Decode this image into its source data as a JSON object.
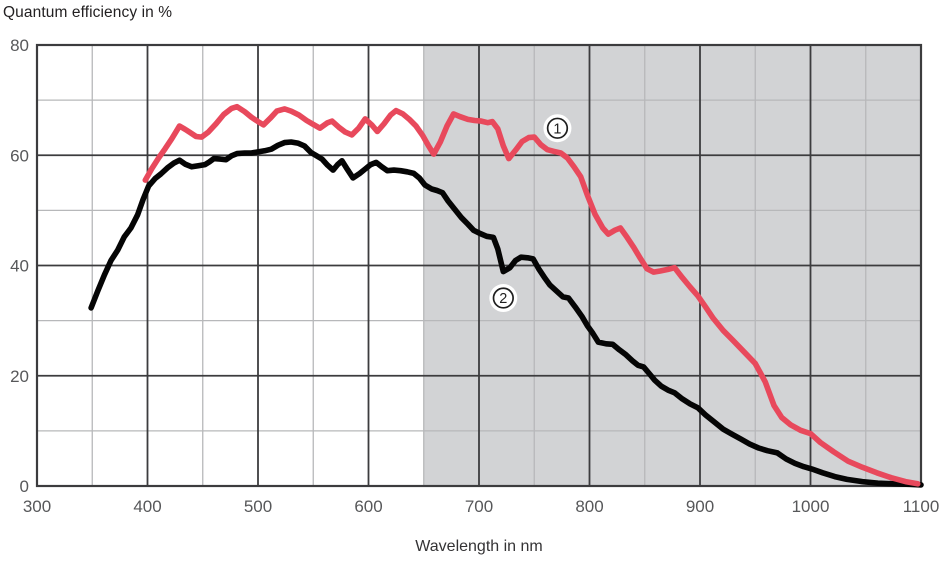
{
  "chart_data": {
    "type": "line",
    "title": "Quantum efficiency in %",
    "xlabel": "Wavelength in nm",
    "ylabel": "Quantum efficiency in %",
    "xlim": [
      300,
      1100
    ],
    "ylim": [
      0,
      80
    ],
    "x_major_ticks": [
      300,
      400,
      500,
      600,
      700,
      800,
      900,
      1000,
      1100
    ],
    "x_minor_ticks": [
      350,
      450,
      550,
      650,
      750,
      850,
      950,
      1050
    ],
    "y_major_ticks": [
      0,
      20,
      40,
      60,
      80
    ],
    "y_minor_ticks": [
      10,
      30,
      50,
      70
    ],
    "grid": true,
    "legend": "none",
    "shaded_region": {
      "x_start": 650,
      "x_end": 1100,
      "color": "#d2d3d5"
    },
    "colors": {
      "series1": "#e8495c",
      "series2": "#050505",
      "grid_major": "#3c3c3e",
      "grid_minor": "#b7b8ba",
      "frame": "#3c3c3e",
      "tick_label": "#57585a",
      "background_left": "#ffffff"
    },
    "annotations": [
      {
        "label": "1",
        "x": 771,
        "y": 64.9
      },
      {
        "label": "2",
        "x": 722,
        "y": 34.1
      }
    ],
    "series": [
      {
        "name": "1",
        "color": "#e8495c",
        "points": [
          [
            398,
            55.5
          ],
          [
            404,
            57.6
          ],
          [
            410,
            59.5
          ],
          [
            416,
            61.2
          ],
          [
            422,
            63
          ],
          [
            429,
            65.3
          ],
          [
            434,
            64.7
          ],
          [
            438,
            64.2
          ],
          [
            444,
            63.4
          ],
          [
            449,
            63.3
          ],
          [
            455,
            64.2
          ],
          [
            462,
            65.7
          ],
          [
            469,
            67.4
          ],
          [
            476,
            68.5
          ],
          [
            481,
            68.8
          ],
          [
            488,
            67.9
          ],
          [
            494,
            66.9
          ],
          [
            500,
            66.1
          ],
          [
            505,
            65.5
          ],
          [
            511,
            66.7
          ],
          [
            517,
            68
          ],
          [
            524,
            68.4
          ],
          [
            530,
            68
          ],
          [
            537,
            67.3
          ],
          [
            544,
            66.3
          ],
          [
            550,
            65.6
          ],
          [
            556,
            64.9
          ],
          [
            563,
            65.9
          ],
          [
            567,
            66.2
          ],
          [
            573,
            65.1
          ],
          [
            579,
            64.2
          ],
          [
            585,
            63.7
          ],
          [
            591,
            64.9
          ],
          [
            597,
            66.6
          ],
          [
            603,
            65.5
          ],
          [
            608,
            64.3
          ],
          [
            614,
            65.7
          ],
          [
            620,
            67.3
          ],
          [
            625,
            68.1
          ],
          [
            631,
            67.5
          ],
          [
            637,
            66.5
          ],
          [
            643,
            65.3
          ],
          [
            649,
            63.6
          ],
          [
            654,
            61.8
          ],
          [
            659,
            60.2
          ],
          [
            665,
            62.4
          ],
          [
            671,
            65.3
          ],
          [
            677,
            67.5
          ],
          [
            683,
            67
          ],
          [
            690,
            66.5
          ],
          [
            696,
            66.3
          ],
          [
            702,
            66.2
          ],
          [
            708,
            65.9
          ],
          [
            712,
            66.1
          ],
          [
            717,
            64.8
          ],
          [
            722,
            61.7
          ],
          [
            727,
            59.4
          ],
          [
            733,
            60.9
          ],
          [
            739,
            62.5
          ],
          [
            745,
            63.2
          ],
          [
            750,
            63.3
          ],
          [
            756,
            61.9
          ],
          [
            762,
            61
          ],
          [
            768,
            60.7
          ],
          [
            774,
            60.4
          ],
          [
            780,
            59.5
          ],
          [
            786,
            57.9
          ],
          [
            792,
            56.1
          ],
          [
            798,
            52.8
          ],
          [
            805,
            49.3
          ],
          [
            812,
            46.8
          ],
          [
            817,
            45.7
          ],
          [
            823,
            46.4
          ],
          [
            828,
            46.8
          ],
          [
            834,
            45.1
          ],
          [
            840,
            43.3
          ],
          [
            846,
            41.3
          ],
          [
            852,
            39.4
          ],
          [
            858,
            38.8
          ],
          [
            864,
            39
          ],
          [
            871,
            39.3
          ],
          [
            877,
            39.6
          ],
          [
            884,
            37.8
          ],
          [
            891,
            36.1
          ],
          [
            898,
            34.5
          ],
          [
            905,
            32.5
          ],
          [
            912,
            30.4
          ],
          [
            921,
            28.2
          ],
          [
            930,
            26.4
          ],
          [
            940,
            24.3
          ],
          [
            950,
            22.2
          ],
          [
            959,
            18.9
          ],
          [
            967,
            14.6
          ],
          [
            974,
            12.4
          ],
          [
            982,
            11.1
          ],
          [
            991,
            10.1
          ],
          [
            1000,
            9.5
          ],
          [
            1009,
            7.9
          ],
          [
            1021,
            6.2
          ],
          [
            1034,
            4.5
          ],
          [
            1047,
            3.4
          ],
          [
            1060,
            2.4
          ],
          [
            1073,
            1.5
          ],
          [
            1086,
            0.8
          ],
          [
            1097,
            0.4
          ]
        ]
      },
      {
        "name": "2",
        "color": "#050505",
        "points": [
          [
            349,
            32.3
          ],
          [
            355,
            35.4
          ],
          [
            361,
            38.3
          ],
          [
            367,
            40.9
          ],
          [
            373,
            42.8
          ],
          [
            379,
            45.2
          ],
          [
            385,
            46.8
          ],
          [
            391,
            49.2
          ],
          [
            396,
            52
          ],
          [
            401,
            54.4
          ],
          [
            407,
            55.8
          ],
          [
            412,
            56.6
          ],
          [
            418,
            57.7
          ],
          [
            424,
            58.6
          ],
          [
            429,
            59.1
          ],
          [
            434,
            58.4
          ],
          [
            440,
            57.9
          ],
          [
            446,
            58.1
          ],
          [
            452,
            58.3
          ],
          [
            456,
            58.8
          ],
          [
            460,
            59.4
          ],
          [
            466,
            59.3
          ],
          [
            471,
            59.2
          ],
          [
            476,
            59.9
          ],
          [
            481,
            60.3
          ],
          [
            488,
            60.4
          ],
          [
            494,
            60.4
          ],
          [
            500,
            60.6
          ],
          [
            506,
            60.8
          ],
          [
            512,
            61.1
          ],
          [
            518,
            61.8
          ],
          [
            524,
            62.3
          ],
          [
            530,
            62.4
          ],
          [
            536,
            62.2
          ],
          [
            542,
            61.7
          ],
          [
            548,
            60.5
          ],
          [
            553,
            59.9
          ],
          [
            558,
            59.3
          ],
          [
            563,
            58.2
          ],
          [
            568,
            57.3
          ],
          [
            572,
            58.3
          ],
          [
            576,
            59
          ],
          [
            581,
            57.4
          ],
          [
            586,
            55.9
          ],
          [
            592,
            56.7
          ],
          [
            597,
            57.5
          ],
          [
            602,
            58.3
          ],
          [
            607,
            58.7
          ],
          [
            612,
            57.9
          ],
          [
            617,
            57.2
          ],
          [
            623,
            57.3
          ],
          [
            629,
            57.2
          ],
          [
            635,
            57
          ],
          [
            641,
            56.7
          ],
          [
            646,
            55.9
          ],
          [
            651,
            54.6
          ],
          [
            657,
            53.9
          ],
          [
            662,
            53.6
          ],
          [
            667,
            53.2
          ],
          [
            672,
            51.7
          ],
          [
            678,
            50.2
          ],
          [
            684,
            48.7
          ],
          [
            690,
            47.5
          ],
          [
            695,
            46.4
          ],
          [
            701,
            45.8
          ],
          [
            707,
            45.3
          ],
          [
            713,
            45.1
          ],
          [
            717,
            43
          ],
          [
            722,
            38.9
          ],
          [
            728,
            39.6
          ],
          [
            733,
            40.9
          ],
          [
            738,
            41.5
          ],
          [
            744,
            41.4
          ],
          [
            749,
            41.2
          ],
          [
            754,
            39.4
          ],
          [
            759,
            37.9
          ],
          [
            764,
            36.5
          ],
          [
            770,
            35.4
          ],
          [
            776,
            34.3
          ],
          [
            781,
            34.1
          ],
          [
            787,
            32.5
          ],
          [
            793,
            30.8
          ],
          [
            798,
            29.1
          ],
          [
            803,
            27.7
          ],
          [
            808,
            26.1
          ],
          [
            815,
            25.8
          ],
          [
            821,
            25.7
          ],
          [
            827,
            24.7
          ],
          [
            833,
            23.8
          ],
          [
            839,
            22.7
          ],
          [
            844,
            21.9
          ],
          [
            849,
            21.6
          ],
          [
            854,
            20.4
          ],
          [
            859,
            19.2
          ],
          [
            865,
            18.1
          ],
          [
            871,
            17.4
          ],
          [
            877,
            16.9
          ],
          [
            884,
            15.8
          ],
          [
            891,
            14.9
          ],
          [
            898,
            14.2
          ],
          [
            905,
            12.9
          ],
          [
            913,
            11.6
          ],
          [
            921,
            10.3
          ],
          [
            929,
            9.4
          ],
          [
            937,
            8.5
          ],
          [
            945,
            7.6
          ],
          [
            953,
            6.9
          ],
          [
            961,
            6.4
          ],
          [
            970,
            6
          ],
          [
            978,
            4.9
          ],
          [
            986,
            4.1
          ],
          [
            994,
            3.5
          ],
          [
            1001,
            3.1
          ],
          [
            1011,
            2.4
          ],
          [
            1022,
            1.7
          ],
          [
            1033,
            1.2
          ],
          [
            1047,
            0.8
          ],
          [
            1061,
            0.5
          ],
          [
            1076,
            0.4
          ],
          [
            1090,
            0.3
          ],
          [
            1100,
            0.2
          ]
        ]
      }
    ]
  }
}
